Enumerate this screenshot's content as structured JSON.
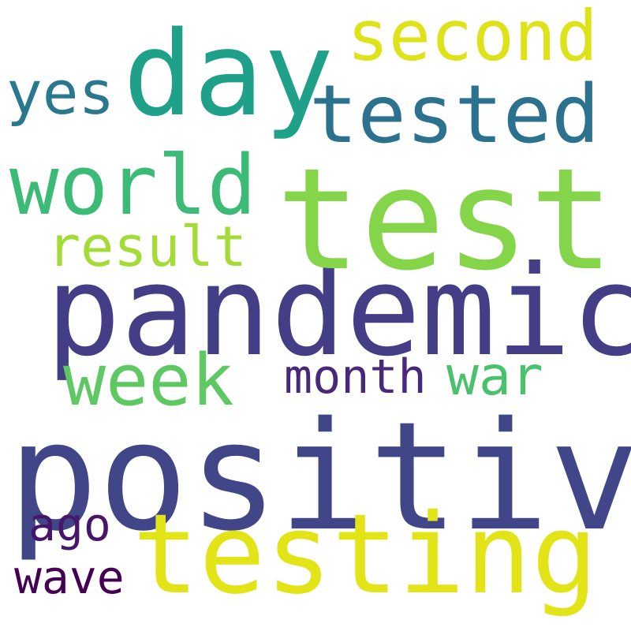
{
  "words": [
    {
      "text": "positive",
      "color": "#404688"
    },
    {
      "text": "pandemic",
      "color": "#433e85"
    },
    {
      "text": "test",
      "color": "#85d54a"
    },
    {
      "text": "testing",
      "color": "#e2e418"
    },
    {
      "text": "day",
      "color": "#1fa088"
    },
    {
      "text": "tested",
      "color": "#2c728e"
    },
    {
      "text": "world",
      "color": "#3bbb75"
    },
    {
      "text": "week",
      "color": "#5ec962"
    },
    {
      "text": "second",
      "color": "#dde318"
    },
    {
      "text": "result",
      "color": "#a5db36"
    },
    {
      "text": "yes",
      "color": "#2a788e"
    },
    {
      "text": "month",
      "color": "#482878"
    },
    {
      "text": "war",
      "color": "#4ac16d"
    },
    {
      "text": "ago",
      "color": "#481668"
    },
    {
      "text": "wave",
      "color": "#440154"
    }
  ]
}
